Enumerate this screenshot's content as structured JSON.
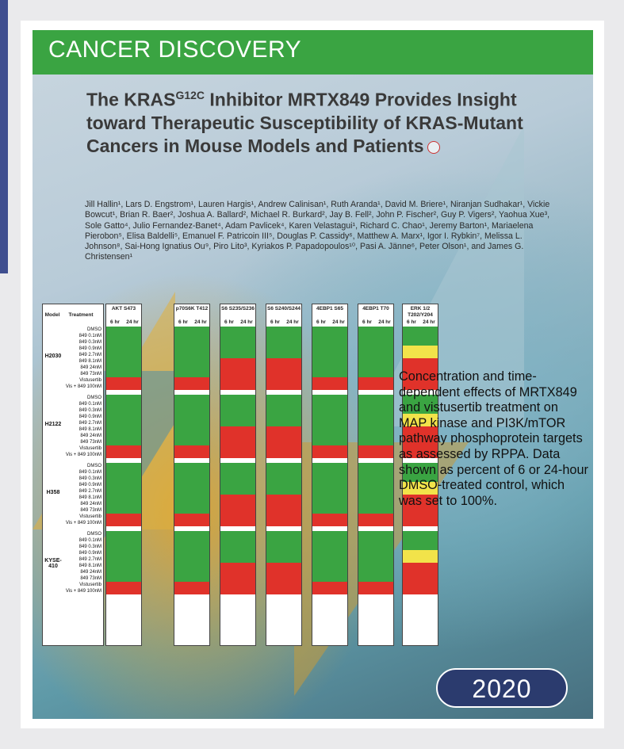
{
  "journal": "CANCER DISCOVERY",
  "title_parts": {
    "pre": "The KRAS",
    "sup": "G12C",
    "post": " Inhibitor MRTX849 Provides Insight toward Therapeutic Susceptibility of KRAS-Mutant Cancers in Mouse Models and Patients"
  },
  "authors": "Jill Hallin¹, Lars D. Engstrom¹, Lauren Hargis¹, Andrew Calinisan¹, Ruth Aranda¹, David M. Briere¹, Niranjan Sudhakar¹, Vickie Bowcut¹, Brian R. Baer², Joshua A. Ballard², Michael R. Burkard², Jay B. Fell², John P. Fischer², Guy P. Vigers², Yaohua Xue³, Sole Gatto⁴, Julio Fernandez-Banet⁴, Adam Pavlicek⁴, Karen Velastagui¹, Richard C. Chao¹, Jeremy Barton¹, Mariaelena Pierobon⁵, Elisa Baldelli⁵, Emanuel F. Patricoin III⁵, Douglas P. Cassidy⁶, Matthew A. Marx¹, Igor I. Rybkin⁷, Melissa L. Johnson⁸, Sai-Hong Ignatius Ou⁹, Piro Lito³, Kyriakos P. Papadopoulos¹⁰, Pasi A. Jänne⁶, Peter Olson¹, and James G. Christensen¹",
  "table": {
    "col_model": "Model",
    "col_treatment": "Treatment",
    "targets": [
      "AKT S473",
      "p70S6K T412",
      "S6 S235/S236",
      "S6 S240/S244",
      "4EBP1 S65",
      "4EBP1 T70",
      "ERK 1/2 T202/Y204"
    ],
    "time_labels": [
      "6 hr",
      "24 hr"
    ],
    "treatments": [
      "DMSO",
      "849 0.1nM",
      "849 0.3nM",
      "849 0.9nM",
      "849 2.7nM",
      "849 8.1nM",
      "849 24nM",
      "849 73nM",
      "Vistusertib",
      "Vis + 849 100nM"
    ],
    "models": [
      "H2030",
      "H2122",
      "H358",
      "KYSE-410"
    ]
  },
  "caption": "Concentration and time-dependent effects of MRTX849 and vistusertib treatment on MAP kinase and PI3K/mTOR pathway phosphoprotein targets as assessed by RPPA. Data shown as percent of 6 or 24-hour DMSO-treated control, which was set to 100%.",
  "year": "2020",
  "colors": {
    "banner": "#3aa442",
    "pill": "#2b3b6e",
    "high": "#3aa442",
    "mid": "#f2e34a",
    "low": "#e0322a"
  }
}
